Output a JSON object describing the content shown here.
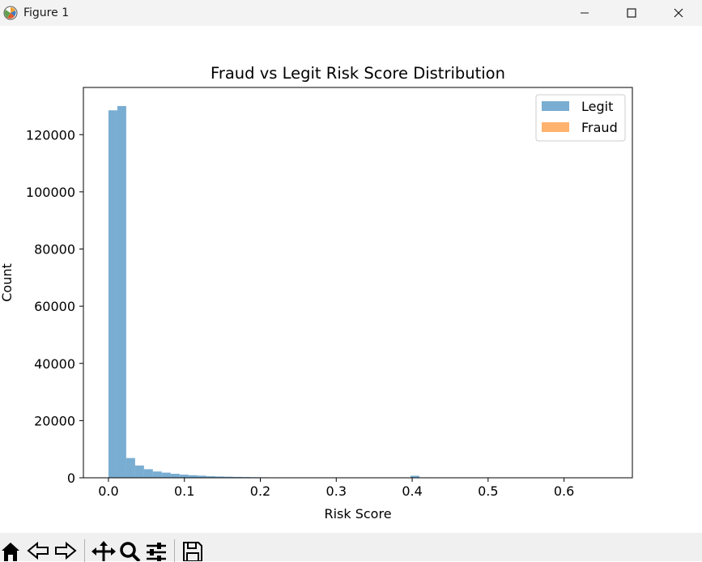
{
  "window": {
    "title": "Figure 1",
    "app_icon": "matplotlib-icon",
    "controls": [
      "minimize-icon",
      "maximize-icon",
      "close-icon"
    ]
  },
  "toolbar": {
    "buttons": [
      "home-icon",
      "back-icon",
      "forward-icon",
      "pan-icon",
      "zoom-icon",
      "configure-subplots-icon",
      "save-icon"
    ]
  },
  "chart_data": {
    "type": "bar",
    "title": "Fraud vs Legit Risk Score Distribution",
    "xlabel": "Risk Score",
    "ylabel": "Count",
    "xlim": [
      -0.033,
      0.69
    ],
    "ylim": [
      0,
      136500
    ],
    "xticks": [
      0.0,
      0.1,
      0.2,
      0.3,
      0.4,
      0.5,
      0.6
    ],
    "xtick_labels": [
      "0.0",
      "0.1",
      "0.2",
      "0.3",
      "0.4",
      "0.5",
      "0.6"
    ],
    "yticks": [
      0,
      20000,
      40000,
      60000,
      80000,
      100000,
      120000
    ],
    "ytick_labels": [
      "0",
      "20000",
      "40000",
      "60000",
      "80000",
      "100000",
      "120000"
    ],
    "legend_position": "top-right",
    "bin_width": 0.0117,
    "series": [
      {
        "name": "Legit",
        "color": "#1f77b4",
        "alpha": 0.6,
        "bin_starts": [
          0.0,
          0.0117,
          0.0234,
          0.0351,
          0.0468,
          0.0585,
          0.0702,
          0.0819,
          0.0936,
          0.1053,
          0.117,
          0.1287,
          0.1404,
          0.1521,
          0.1638,
          0.1755,
          0.1872,
          0.1989,
          0.2106,
          0.3978,
          0.4095
        ],
        "values": [
          128500,
          130000,
          6900,
          4300,
          3000,
          2200,
          1800,
          1400,
          1100,
          900,
          750,
          550,
          450,
          380,
          300,
          250,
          200,
          160,
          120,
          700,
          150
        ]
      },
      {
        "name": "Fraud",
        "color": "#ff7f0e",
        "alpha": 0.6,
        "bin_starts": [],
        "values": []
      }
    ]
  }
}
